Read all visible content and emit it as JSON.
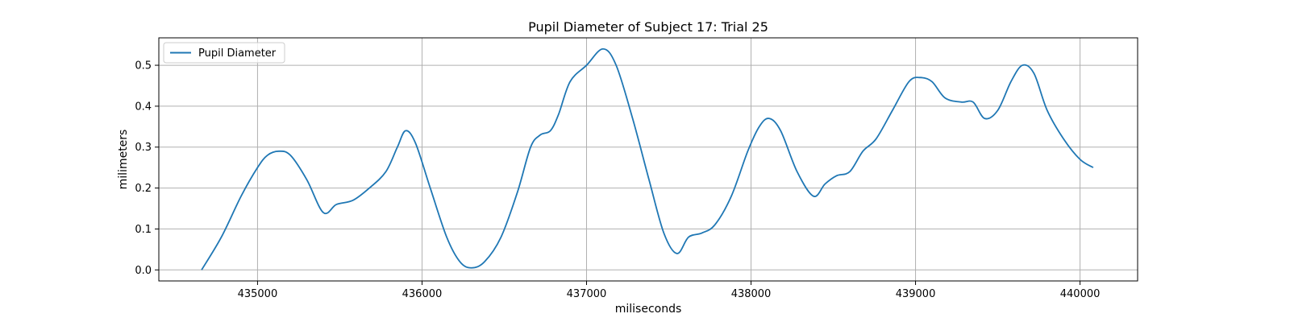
{
  "chart_data": {
    "type": "line",
    "title": "Pupil Diameter of Subject 17: Trial 25",
    "xlabel": "miliseconds",
    "ylabel": "milimeters",
    "xlim": [
      434400,
      440350
    ],
    "ylim": [
      -0.027,
      0.567
    ],
    "xticks": [
      435000,
      436000,
      437000,
      438000,
      439000,
      440000
    ],
    "yticks": [
      0.0,
      0.1,
      0.2,
      0.3,
      0.4,
      0.5
    ],
    "xtick_labels": [
      "435000",
      "436000",
      "437000",
      "438000",
      "439000",
      "440000"
    ],
    "ytick_labels": [
      "0.0",
      "0.1",
      "0.2",
      "0.3",
      "0.4",
      "0.5"
    ],
    "grid": true,
    "legend_position": "top-left",
    "series": [
      {
        "name": "Pupil Diameter",
        "color": "#1f77b4",
        "x": [
          434660,
          434780,
          434900,
          435000,
          435060,
          435130,
          435200,
          435300,
          435400,
          435480,
          435580,
          435680,
          435780,
          435850,
          435900,
          435960,
          436050,
          436150,
          436230,
          436300,
          436380,
          436480,
          436580,
          436660,
          436720,
          436780,
          436830,
          436900,
          437000,
          437100,
          437180,
          437280,
          437380,
          437470,
          437550,
          437620,
          437700,
          437780,
          437880,
          437980,
          438050,
          438110,
          438180,
          438280,
          438380,
          438450,
          438520,
          438600,
          438680,
          438760,
          438860,
          438960,
          439030,
          439100,
          439180,
          439280,
          439350,
          439420,
          439500,
          439580,
          439650,
          439720,
          439800,
          439900,
          440000,
          440080
        ],
        "y": [
          0.0,
          0.08,
          0.18,
          0.25,
          0.28,
          0.29,
          0.28,
          0.22,
          0.14,
          0.16,
          0.17,
          0.2,
          0.24,
          0.3,
          0.34,
          0.31,
          0.2,
          0.08,
          0.02,
          0.005,
          0.02,
          0.08,
          0.19,
          0.3,
          0.33,
          0.34,
          0.38,
          0.46,
          0.5,
          0.54,
          0.5,
          0.37,
          0.22,
          0.09,
          0.04,
          0.08,
          0.09,
          0.11,
          0.18,
          0.29,
          0.35,
          0.37,
          0.34,
          0.24,
          0.18,
          0.21,
          0.23,
          0.24,
          0.29,
          0.32,
          0.39,
          0.46,
          0.47,
          0.46,
          0.42,
          0.41,
          0.41,
          0.37,
          0.39,
          0.46,
          0.5,
          0.48,
          0.39,
          0.32,
          0.27,
          0.25
        ]
      }
    ]
  }
}
